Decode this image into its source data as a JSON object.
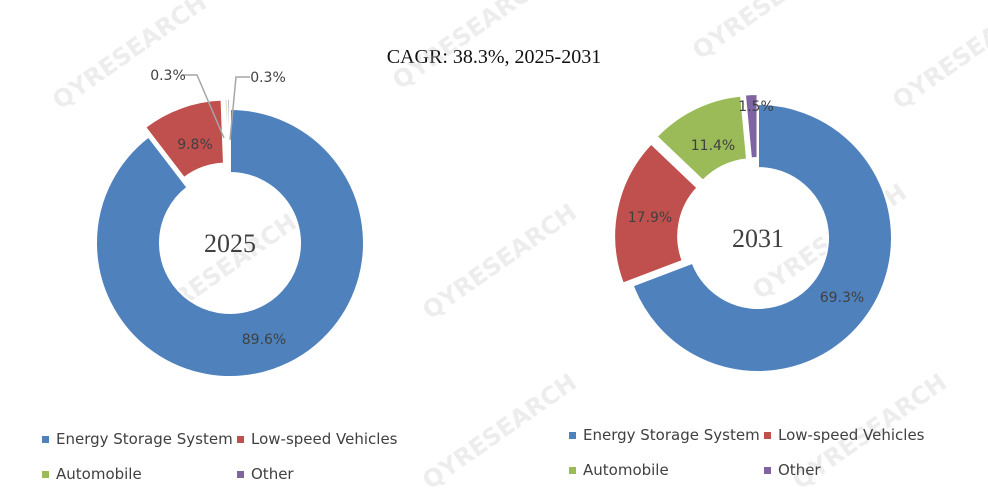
{
  "title": "CAGR:   38.3%, 2025-2031",
  "watermark": "QYRESEARCH",
  "colors": {
    "energy": "#4f81bd",
    "lowspeed": "#c0504d",
    "auto": "#9bbb59",
    "other": "#8064a2"
  },
  "chart_data": [
    {
      "type": "pie",
      "center_label": "2025",
      "categories": [
        "Energy Storage System",
        "Low-speed Vehicles",
        "Automobile",
        "Other"
      ],
      "values": [
        89.6,
        9.8,
        0.3,
        0.3
      ],
      "labels": [
        "89.6%",
        "9.8%",
        "0.3%",
        "0.3%"
      ],
      "legend_position": "bottom"
    },
    {
      "type": "pie",
      "center_label": "2031",
      "categories": [
        "Energy Storage System",
        "Low-speed Vehicles",
        "Automobile",
        "Other"
      ],
      "values": [
        69.3,
        17.9,
        11.4,
        1.5
      ],
      "labels": [
        "69.3%",
        "17.9%",
        "11.4%",
        "1.5%"
      ],
      "legend_position": "bottom"
    }
  ],
  "legend_items": [
    "Energy Storage System",
    "Low-speed Vehicles",
    "Automobile",
    "Other"
  ]
}
